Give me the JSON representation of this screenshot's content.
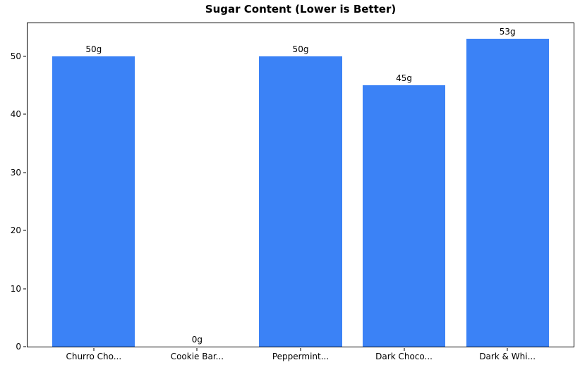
{
  "chart_data": {
    "type": "bar",
    "title": "Sugar Content (Lower is Better)",
    "categories": [
      "Churro Cho...",
      "Cookie Bar...",
      "Peppermint...",
      "Dark Choco...",
      "Dark & Whi..."
    ],
    "values": [
      50,
      0,
      50,
      45,
      53
    ],
    "value_labels": [
      "50g",
      "0g",
      "50g",
      "45g",
      "53g"
    ],
    "yticks": [
      0,
      10,
      20,
      30,
      40,
      50
    ],
    "ylim": [
      0,
      55.65
    ],
    "xlabel": "",
    "ylabel": "",
    "bar_color": "#3b82f6",
    "axis_color": "#000000",
    "bar_width_frac": 0.8,
    "x_margin_frac": 0.24,
    "grid": false,
    "legend": false
  }
}
